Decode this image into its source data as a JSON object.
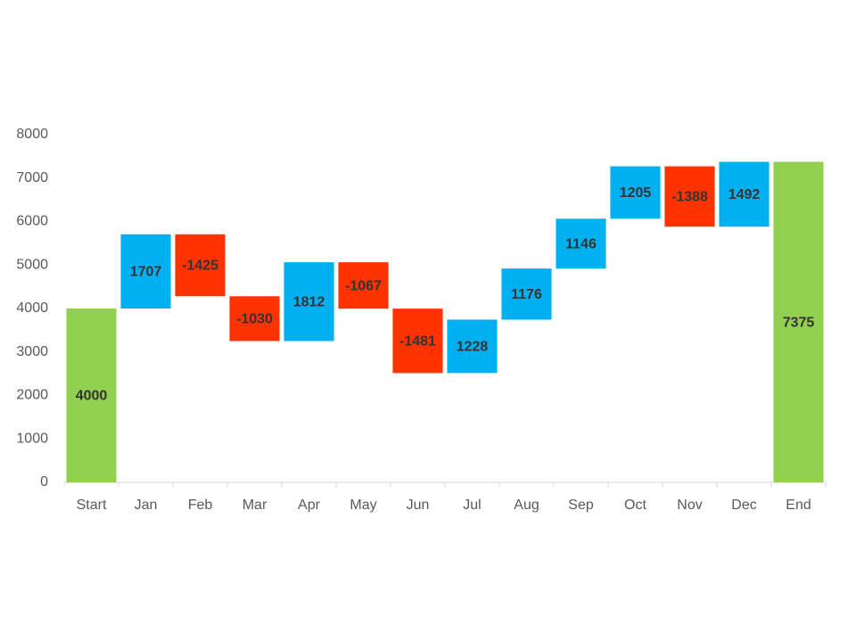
{
  "chart_data": {
    "type": "waterfall",
    "categories": [
      "Start",
      "Jan",
      "Feb",
      "Mar",
      "Apr",
      "May",
      "Jun",
      "Jul",
      "Aug",
      "Sep",
      "Oct",
      "Nov",
      "Dec",
      "End"
    ],
    "values": [
      4000,
      1707,
      -1425,
      -1030,
      1812,
      -1067,
      -1481,
      1228,
      1176,
      1146,
      1205,
      -1388,
      1492,
      7375
    ],
    "colors": {
      "increase": "#00b0f0",
      "decrease": "#ff3300",
      "total": "#92d050"
    },
    "ylim": [
      0,
      8000
    ],
    "yticks": [
      0,
      1000,
      2000,
      3000,
      4000,
      5000,
      6000,
      7000,
      8000
    ],
    "grid": false
  }
}
